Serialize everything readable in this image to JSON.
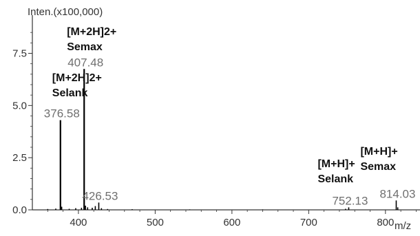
{
  "chart_data": {
    "type": "line",
    "title": "",
    "ylabel": "Inten.(x100,000)",
    "xlabel": "m/z",
    "xlim": [
      340,
      845
    ],
    "ylim": [
      0,
      9.0
    ],
    "x_ticks": [
      {
        "value": 400,
        "label": "400"
      },
      {
        "value": 500,
        "label": "500"
      },
      {
        "value": 600,
        "label": "600"
      },
      {
        "value": 700,
        "label": "700"
      },
      {
        "value": 800,
        "label": "800"
      }
    ],
    "y_ticks": [
      {
        "value": 0.0,
        "label": "0.0"
      },
      {
        "value": 2.5,
        "label": "2.5"
      },
      {
        "value": 5.0,
        "label": "5.0"
      },
      {
        "value": 7.5,
        "label": "7.5"
      }
    ],
    "grid": false,
    "spectrum": [
      {
        "mz": 376.58,
        "intensity": 4.3
      },
      {
        "mz": 407.48,
        "intensity": 6.75
      },
      {
        "mz": 426.53,
        "intensity": 0.35
      },
      {
        "mz": 752.13,
        "intensity": 0.12
      },
      {
        "mz": 814.03,
        "intensity": 0.45
      },
      {
        "mz": 360.0,
        "intensity": 0.04
      },
      {
        "mz": 370.5,
        "intensity": 0.06
      },
      {
        "mz": 378.2,
        "intensity": 0.15
      },
      {
        "mz": 388.0,
        "intensity": 0.05
      },
      {
        "mz": 396.5,
        "intensity": 0.08
      },
      {
        "mz": 404.0,
        "intensity": 0.1
      },
      {
        "mz": 409.2,
        "intensity": 0.2
      },
      {
        "mz": 412.0,
        "intensity": 0.12
      },
      {
        "mz": 418.0,
        "intensity": 0.1
      },
      {
        "mz": 422.0,
        "intensity": 0.18
      },
      {
        "mz": 430.0,
        "intensity": 0.08
      },
      {
        "mz": 438.0,
        "intensity": 0.04
      },
      {
        "mz": 470.0,
        "intensity": 0.03
      },
      {
        "mz": 545.0,
        "intensity": 0.02
      },
      {
        "mz": 640.0,
        "intensity": 0.02
      },
      {
        "mz": 748.0,
        "intensity": 0.05
      },
      {
        "mz": 816.0,
        "intensity": 0.12
      }
    ],
    "peak_labels": [
      {
        "mz": 376.58,
        "intensity": 4.3,
        "text": "376.58"
      },
      {
        "mz": 407.48,
        "intensity": 6.75,
        "text": "407.48"
      },
      {
        "mz": 426.53,
        "intensity": 0.35,
        "text": "426.53"
      },
      {
        "mz": 752.13,
        "intensity": 0.12,
        "text": "752.13"
      },
      {
        "mz": 814.03,
        "intensity": 0.45,
        "text": "814.03"
      }
    ],
    "annotations": [
      {
        "mz": 376.58,
        "lines": [
          "[M+2H]2+",
          "Selank"
        ]
      },
      {
        "mz": 407.48,
        "lines": [
          "[M+2H]2+",
          "Semax"
        ]
      },
      {
        "mz": 752.13,
        "lines": [
          "[M+H]+",
          "Selank"
        ]
      },
      {
        "mz": 814.03,
        "lines": [
          "[M+H]+",
          "Semax"
        ]
      }
    ]
  }
}
